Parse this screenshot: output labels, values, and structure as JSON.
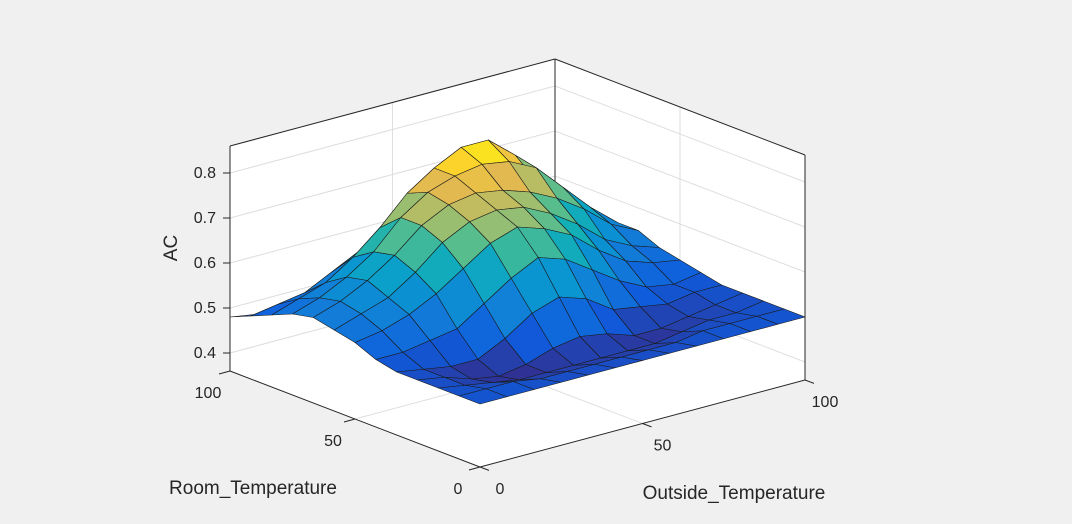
{
  "window": {
    "background": "#f0f0f0"
  },
  "chart_data": {
    "type": "surface",
    "title": "",
    "xlabel": "Outside_Temperature",
    "ylabel": "Room_Temperature",
    "zlabel": "AC",
    "xlim": [
      0,
      100
    ],
    "ylim": [
      0,
      100
    ],
    "zlim": [
      0.36,
      0.86
    ],
    "xticks": [
      0,
      50,
      100
    ],
    "yticks": [
      0,
      50,
      100
    ],
    "zticks": [
      0.4,
      0.5,
      0.6,
      0.7,
      0.8
    ],
    "xtick_labels": [
      "0",
      "50",
      "100"
    ],
    "ytick_labels": [
      "0",
      "50",
      "100"
    ],
    "ztick_labels": [
      "0.4",
      "0.5",
      "0.6",
      "0.7",
      "0.8"
    ],
    "grid": true,
    "colormap": "parula",
    "x": [
      0,
      8.33,
      16.67,
      25,
      33.33,
      41.67,
      50,
      58.33,
      66.67,
      75,
      83.33,
      91.67,
      100
    ],
    "y": [
      0,
      8.33,
      16.67,
      25,
      33.33,
      41.67,
      50,
      58.33,
      66.67,
      75,
      83.33,
      91.67,
      100
    ],
    "z": [
      [
        0.5,
        0.5,
        0.5,
        0.5,
        0.5,
        0.5,
        0.5,
        0.5,
        0.5,
        0.5,
        0.5,
        0.5,
        0.5
      ],
      [
        0.5,
        0.5,
        0.5,
        0.49,
        0.49,
        0.49,
        0.49,
        0.49,
        0.49,
        0.5,
        0.5,
        0.5,
        0.5
      ],
      [
        0.5,
        0.49,
        0.48,
        0.47,
        0.47,
        0.47,
        0.47,
        0.47,
        0.47,
        0.48,
        0.49,
        0.49,
        0.5
      ],
      [
        0.5,
        0.49,
        0.47,
        0.46,
        0.47,
        0.49,
        0.5,
        0.49,
        0.47,
        0.47,
        0.48,
        0.49,
        0.5
      ],
      [
        0.5,
        0.49,
        0.48,
        0.48,
        0.51,
        0.55,
        0.57,
        0.55,
        0.51,
        0.5,
        0.49,
        0.5,
        0.5
      ],
      [
        0.51,
        0.51,
        0.52,
        0.53,
        0.57,
        0.61,
        0.64,
        0.62,
        0.58,
        0.54,
        0.51,
        0.5,
        0.51
      ],
      [
        0.53,
        0.54,
        0.56,
        0.59,
        0.63,
        0.67,
        0.69,
        0.67,
        0.64,
        0.59,
        0.55,
        0.53,
        0.52
      ],
      [
        0.54,
        0.56,
        0.58,
        0.62,
        0.67,
        0.7,
        0.71,
        0.7,
        0.67,
        0.63,
        0.58,
        0.55,
        0.53
      ],
      [
        0.55,
        0.57,
        0.6,
        0.64,
        0.69,
        0.72,
        0.73,
        0.72,
        0.7,
        0.67,
        0.63,
        0.58,
        0.55
      ],
      [
        0.54,
        0.56,
        0.59,
        0.63,
        0.69,
        0.73,
        0.75,
        0.76,
        0.75,
        0.72,
        0.66,
        0.6,
        0.55
      ],
      [
        0.52,
        0.54,
        0.56,
        0.6,
        0.65,
        0.71,
        0.75,
        0.78,
        0.78,
        0.73,
        0.64,
        0.57,
        0.53
      ],
      [
        0.5,
        0.51,
        0.52,
        0.55,
        0.58,
        0.62,
        0.65,
        0.66,
        0.62,
        0.56,
        0.52,
        0.51,
        0.5
      ],
      [
        0.48,
        0.47,
        0.46,
        0.46,
        0.47,
        0.49,
        0.51,
        0.51,
        0.49,
        0.47,
        0.46,
        0.47,
        0.48
      ]
    ]
  }
}
